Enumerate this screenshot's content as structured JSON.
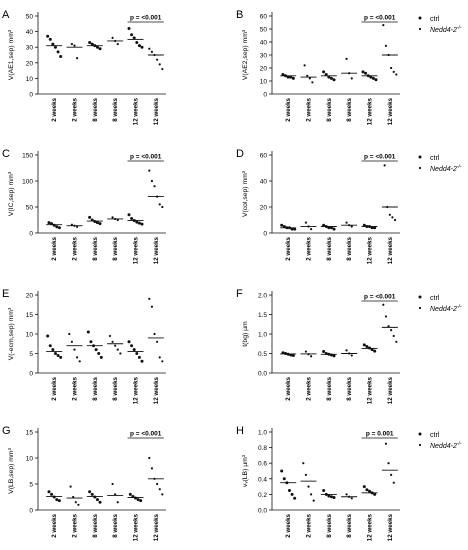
{
  "figure": {
    "categories": [
      "2 weeks",
      "2 weeks",
      "8 weeks",
      "8 weeks",
      "12 weeks",
      "12 weeks"
    ],
    "legend": {
      "ctrl": "ctrl",
      "ko_prefix": "Nedd4-2",
      "ko_sup": "-/-"
    },
    "colors": {
      "ctrl": "#111111",
      "ko": "#111111",
      "axis": "#111111"
    }
  },
  "chart_data": [
    {
      "type": "scatter",
      "panel": "A",
      "legend": false,
      "categories": [
        "2 weeks",
        "2 weeks",
        "8 weeks",
        "8 weeks",
        "12 weeks",
        "12 weeks"
      ],
      "ylabel": "V(AE1,sep) mm³",
      "ylim": [
        0,
        50
      ],
      "yticks": [
        "0",
        "10",
        "20",
        "30",
        "40",
        "50"
      ],
      "ytick_values": [
        0,
        10,
        20,
        30,
        40,
        50
      ],
      "series": [
        {
          "values": [
            [
              37,
              35,
              32,
              30,
              27,
              24
            ],
            [
              32,
              31,
              23
            ],
            [
              33,
              32,
              31,
              30,
              29
            ],
            [
              36,
              34,
              32
            ],
            [
              42,
              38,
              36,
              33,
              31,
              30
            ],
            [
              29,
              27,
              25,
              22,
              19,
              16
            ]
          ]
        }
      ],
      "means": [
        31,
        30,
        31,
        34,
        35,
        25
      ],
      "annotation": {
        "text": "p = <0.001",
        "span": [
          4,
          5
        ]
      }
    },
    {
      "type": "scatter",
      "panel": "B",
      "legend": true,
      "categories": [
        "2 weeks",
        "2 weeks",
        "8 weeks",
        "8 weeks",
        "12 weeks",
        "12 weeks"
      ],
      "ylabel": "V(AE2,sep) mm³",
      "ylim": [
        0,
        60
      ],
      "yticks": [
        "0",
        "10",
        "20",
        "30",
        "40",
        "50",
        "60"
      ],
      "ytick_values": [
        0,
        10,
        20,
        30,
        40,
        50,
        60
      ],
      "series": [
        {
          "values": [
            [
              15,
              14,
              13,
              13,
              12
            ],
            [
              22,
              14,
              12,
              9
            ],
            [
              17,
              15,
              13,
              12,
              11
            ],
            [
              27,
              16,
              12
            ],
            [
              17,
              16,
              14,
              13,
              12,
              11
            ],
            [
              53,
              37,
              30,
              20,
              17,
              15
            ]
          ]
        }
      ],
      "means": [
        14,
        13,
        14,
        16,
        14,
        30
      ],
      "annotation": {
        "text": "p = <0.001",
        "span": [
          4,
          5
        ]
      }
    },
    {
      "type": "scatter",
      "panel": "C",
      "legend": false,
      "categories": [
        "2 weeks",
        "2 weeks",
        "8 weeks",
        "8 weeks",
        "12 weeks",
        "12 weeks"
      ],
      "ylabel": "V(IC,sep) mm³",
      "ylim": [
        0,
        150
      ],
      "yticks": [
        "0",
        "50",
        "100",
        "150"
      ],
      "ytick_values": [
        0,
        50,
        100,
        150
      ],
      "series": [
        {
          "values": [
            [
              20,
              18,
              15,
              12,
              10
            ],
            [
              16,
              14,
              12
            ],
            [
              30,
              25,
              22,
              20,
              18
            ],
            [
              30,
              27,
              25
            ],
            [
              35,
              28,
              24,
              21,
              19,
              17
            ],
            [
              120,
              100,
              90,
              70,
              55,
              50
            ]
          ]
        }
      ],
      "means": [
        16,
        14,
        23,
        27,
        24,
        70
      ],
      "annotation": {
        "text": "p = <0.001",
        "span": [
          4,
          5
        ]
      }
    },
    {
      "type": "scatter",
      "panel": "D",
      "legend": true,
      "categories": [
        "2 weeks",
        "2 weeks",
        "8 weeks",
        "8 weeks",
        "12 weeks",
        "12 weeks"
      ],
      "ylabel": "V(col,sep) mm³",
      "ylim": [
        0,
        60
      ],
      "yticks": [
        "0",
        "20",
        "40",
        "60"
      ],
      "ytick_values": [
        0,
        20,
        40,
        60
      ],
      "series": [
        {
          "values": [
            [
              6,
              5,
              4,
              4,
              3,
              3
            ],
            [
              8,
              5,
              3
            ],
            [
              6,
              5,
              4,
              4,
              3
            ],
            [
              8,
              6,
              5
            ],
            [
              6,
              5,
              5,
              4,
              4
            ],
            [
              52,
              20,
              14,
              12,
              10
            ]
          ]
        }
      ],
      "means": [
        4,
        5,
        5,
        6,
        5,
        20
      ],
      "annotation": {
        "text": "p = <0.001",
        "span": [
          4,
          5
        ]
      }
    },
    {
      "type": "scatter",
      "panel": "E",
      "legend": false,
      "categories": [
        "2 weeks",
        "2 weeks",
        "8 weeks",
        "8 weeks",
        "12 weeks",
        "12 weeks"
      ],
      "ylabel": "V(-ecm,sep) mm³",
      "ylim": [
        0,
        20
      ],
      "yticks": [
        "0",
        "5",
        "10",
        "15",
        "20"
      ],
      "ytick_values": [
        0,
        5,
        10,
        15,
        20
      ],
      "series": [
        {
          "values": [
            [
              9.5,
              7,
              6,
              5,
              4.5,
              4
            ],
            [
              10,
              8,
              6,
              4,
              3
            ],
            [
              10.5,
              8,
              7,
              6,
              5,
              4
            ],
            [
              9.5,
              8,
              7,
              6,
              5
            ],
            [
              8,
              7,
              6,
              5,
              4,
              3
            ],
            [
              19,
              17,
              10,
              8,
              4,
              3
            ]
          ]
        }
      ],
      "means": [
        5.5,
        7,
        7,
        7.5,
        5.5,
        9
      ],
      "annotation": null
    },
    {
      "type": "scatter",
      "panel": "F",
      "legend": true,
      "categories": [
        "2 weeks",
        "2 weeks",
        "8 weeks",
        "8 weeks",
        "12 weeks",
        "12 weeks"
      ],
      "ylabel": "t(bg) µm",
      "ylim": [
        0,
        2.0
      ],
      "yticks": [
        "0.0",
        "0.5",
        "1.0",
        "1.5",
        "2.0"
      ],
      "ytick_values": [
        0,
        0.5,
        1.0,
        1.5,
        2.0
      ],
      "series": [
        {
          "values": [
            [
              0.52,
              0.5,
              0.48,
              0.46,
              0.45
            ],
            [
              0.55,
              0.48,
              0.43
            ],
            [
              0.55,
              0.5,
              0.48,
              0.46,
              0.44
            ],
            [
              0.58,
              0.5,
              0.45
            ],
            [
              0.72,
              0.68,
              0.64,
              0.6,
              0.56
            ],
            [
              1.75,
              1.45,
              1.2,
              1.1,
              0.95,
              0.8
            ]
          ]
        }
      ],
      "means": [
        0.49,
        0.49,
        0.48,
        0.5,
        0.63,
        1.17
      ],
      "annotation": {
        "text": "p = <0.001",
        "span": [
          4,
          5
        ]
      }
    },
    {
      "type": "scatter",
      "panel": "G",
      "legend": false,
      "categories": [
        "2 weeks",
        "2 weeks",
        "8 weeks",
        "8 weeks",
        "12 weeks",
        "12 weeks"
      ],
      "ylabel": "V(LB,sep) mm³",
      "ylim": [
        0,
        15
      ],
      "yticks": [
        "0",
        "5",
        "10",
        "15"
      ],
      "ytick_values": [
        0,
        5,
        10,
        15
      ],
      "series": [
        {
          "values": [
            [
              3.5,
              3,
              2.5,
              2,
              1.8
            ],
            [
              4.5,
              2.5,
              1.5,
              1
            ],
            [
              3.5,
              3,
              2.5,
              2,
              1.5
            ],
            [
              5,
              3,
              1.5
            ],
            [
              3,
              2.6,
              2.3,
              2,
              1.8
            ],
            [
              10,
              8,
              6,
              5,
              4,
              3
            ]
          ]
        }
      ],
      "means": [
        2.6,
        2.3,
        2.6,
        2.8,
        2.4,
        6
      ],
      "annotation": {
        "text": "p = <0.001",
        "span": [
          4,
          5
        ]
      }
    },
    {
      "type": "scatter",
      "panel": "H",
      "legend": true,
      "categories": [
        "2 weeks",
        "2 weeks",
        "8 weeks",
        "8 weeks",
        "12 weeks",
        "12 weeks"
      ],
      "ylabel": "vᵥ(LB) µm³",
      "ylim": [
        0,
        1.0
      ],
      "yticks": [
        "0.0",
        "0.2",
        "0.4",
        "0.6",
        "0.8",
        "1.0"
      ],
      "ytick_values": [
        0,
        0.2,
        0.4,
        0.6,
        0.8,
        1.0
      ],
      "series": [
        {
          "values": [
            [
              0.5,
              0.4,
              0.35,
              0.25,
              0.2,
              0.15
            ],
            [
              0.6,
              0.45,
              0.3,
              0.2,
              0.12
            ],
            [
              0.25,
              0.2,
              0.18,
              0.17,
              0.16
            ],
            [
              0.2,
              0.17,
              0.15
            ],
            [
              0.3,
              0.26,
              0.24,
              0.22,
              0.2
            ],
            [
              0.85,
              0.6,
              0.45,
              0.35
            ]
          ]
        }
      ],
      "means": [
        0.35,
        0.37,
        0.2,
        0.17,
        0.22,
        0.51
      ],
      "annotation": {
        "text": "p = 0.001",
        "span": [
          4,
          5
        ]
      }
    }
  ]
}
